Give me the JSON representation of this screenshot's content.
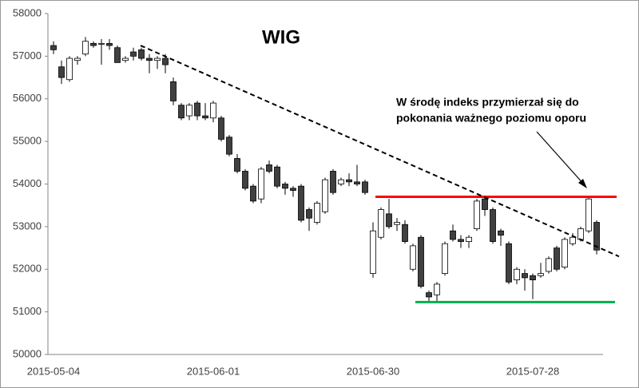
{
  "chart_data": {
    "type": "candlestick",
    "title": "WIG",
    "annotation": [
      "W środę indeks przymierzał się do",
      "pokonania  ważnego poziomu  oporu"
    ],
    "categories": [
      "2015-05-04",
      null,
      null,
      null,
      null,
      null,
      null,
      null,
      null,
      null,
      null,
      null,
      null,
      null,
      null,
      null,
      null,
      null,
      null,
      null,
      "2015-06-01",
      null,
      null,
      null,
      null,
      null,
      null,
      null,
      null,
      null,
      null,
      null,
      null,
      null,
      null,
      null,
      null,
      null,
      null,
      null,
      "2015-06-30",
      null,
      null,
      null,
      null,
      null,
      null,
      null,
      null,
      null,
      null,
      null,
      null,
      null,
      null,
      null,
      null,
      null,
      null,
      null,
      "2015-07-28",
      null,
      null,
      null,
      null,
      null,
      null,
      null,
      null
    ],
    "open": [
      57250,
      56750,
      56450,
      56900,
      57050,
      57300,
      57280,
      57300,
      57200,
      56900,
      57100,
      57150,
      56950,
      56900,
      56950,
      56400,
      55850,
      55600,
      55900,
      55600,
      55550,
      55550,
      55100,
      54600,
      54300,
      53950,
      53650,
      54450,
      54400,
      54000,
      53900,
      53950,
      53400,
      53100,
      53350,
      54300,
      54000,
      54100,
      54050,
      54050,
      51900,
      52750,
      53300,
      53050,
      53050,
      52000,
      52750,
      51450,
      51400,
      51900,
      52900,
      52700,
      52650,
      52950,
      53650,
      53400,
      52900,
      52600,
      51750,
      51900,
      51850,
      51850,
      51950,
      52500,
      52050,
      52600,
      52700,
      52900,
      53100
    ],
    "high": [
      57350,
      56900,
      57000,
      57000,
      57450,
      57350,
      57400,
      57400,
      57250,
      57000,
      57200,
      57200,
      57050,
      57000,
      57050,
      56500,
      55900,
      55900,
      55950,
      55900,
      55950,
      55600,
      55150,
      54700,
      54350,
      54000,
      54400,
      54550,
      54450,
      54050,
      53950,
      54000,
      53450,
      53600,
      54150,
      54350,
      54150,
      54250,
      54450,
      54100,
      53100,
      53450,
      53650,
      53200,
      53150,
      52600,
      52800,
      51500,
      51700,
      52650,
      53050,
      52800,
      52800,
      53650,
      53700,
      53450,
      52950,
      52650,
      52050,
      52000,
      51900,
      52150,
      52300,
      52550,
      52750,
      52850,
      53000,
      53700,
      53150
    ],
    "low": [
      57050,
      56350,
      56400,
      56800,
      57000,
      57200,
      56800,
      57150,
      56850,
      56850,
      56900,
      56900,
      56600,
      56700,
      56600,
      55850,
      55500,
      55500,
      55500,
      55500,
      55450,
      55000,
      54650,
      54250,
      53850,
      53550,
      53550,
      54250,
      53900,
      53750,
      53700,
      53100,
      52900,
      53050,
      53300,
      53750,
      53950,
      53950,
      53950,
      53750,
      51800,
      52700,
      52950,
      52900,
      52600,
      51950,
      51550,
      51250,
      51250,
      51850,
      52650,
      52500,
      52500,
      52900,
      53250,
      52600,
      52550,
      51650,
      51650,
      51500,
      51300,
      51800,
      51900,
      51950,
      52000,
      52550,
      52650,
      52850,
      52350
    ],
    "close": [
      57150,
      56500,
      56950,
      56950,
      57350,
      57250,
      57300,
      57250,
      56850,
      56950,
      57000,
      56950,
      56900,
      56950,
      56800,
      55950,
      55550,
      55850,
      55600,
      55550,
      55900,
      55050,
      54700,
      54300,
      53900,
      53600,
      54350,
      54300,
      53950,
      53900,
      53850,
      53150,
      53200,
      53550,
      54100,
      53800,
      54100,
      54050,
      54000,
      53800,
      52900,
      53400,
      53000,
      53100,
      52650,
      52550,
      51600,
      51350,
      51650,
      52600,
      52700,
      52650,
      52750,
      53600,
      53400,
      52650,
      52800,
      51700,
      52000,
      51800,
      51750,
      51900,
      52250,
      52000,
      52700,
      52750,
      52950,
      53650,
      52450
    ],
    "up_color": "#ffffff",
    "down_color": "#404040",
    "ylim": [
      50000,
      58000
    ],
    "yticks": [
      50000,
      51000,
      52000,
      53000,
      54000,
      55000,
      56000,
      57000,
      58000
    ],
    "grid": false,
    "resistance": {
      "value": 53700,
      "from": 40.3,
      "to": 70.5,
      "color": "#ff0000"
    },
    "support": {
      "value": 51230,
      "from": 45.3,
      "to": 70.3,
      "color": "#00b050"
    },
    "trend": {
      "from": [
        10.9,
        57250
      ],
      "to": [
        70.8,
        52300
      ],
      "color": "#000000"
    }
  }
}
